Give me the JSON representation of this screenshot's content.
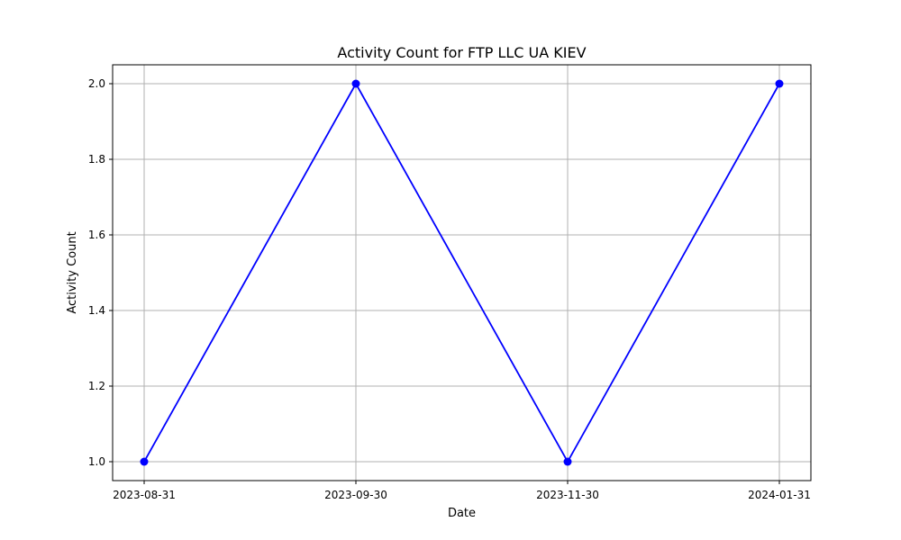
{
  "chart_data": {
    "type": "line",
    "title": "Activity Count for FTP LLC UA KIEV",
    "xlabel": "Date",
    "ylabel": "Activity Count",
    "categories": [
      "2023-08-31",
      "2023-09-30",
      "2023-11-30",
      "2024-01-31"
    ],
    "values": [
      1.0,
      2.0,
      1.0,
      2.0
    ],
    "ylim": [
      0.95,
      2.05
    ],
    "yticks": [
      1.0,
      1.2,
      1.4,
      1.6,
      1.8,
      2.0
    ],
    "ytick_labels": [
      "1.0",
      "1.2",
      "1.4",
      "1.6",
      "1.8",
      "2.0"
    ],
    "grid": true,
    "line_color": "#0000ff",
    "marker": "circle"
  }
}
